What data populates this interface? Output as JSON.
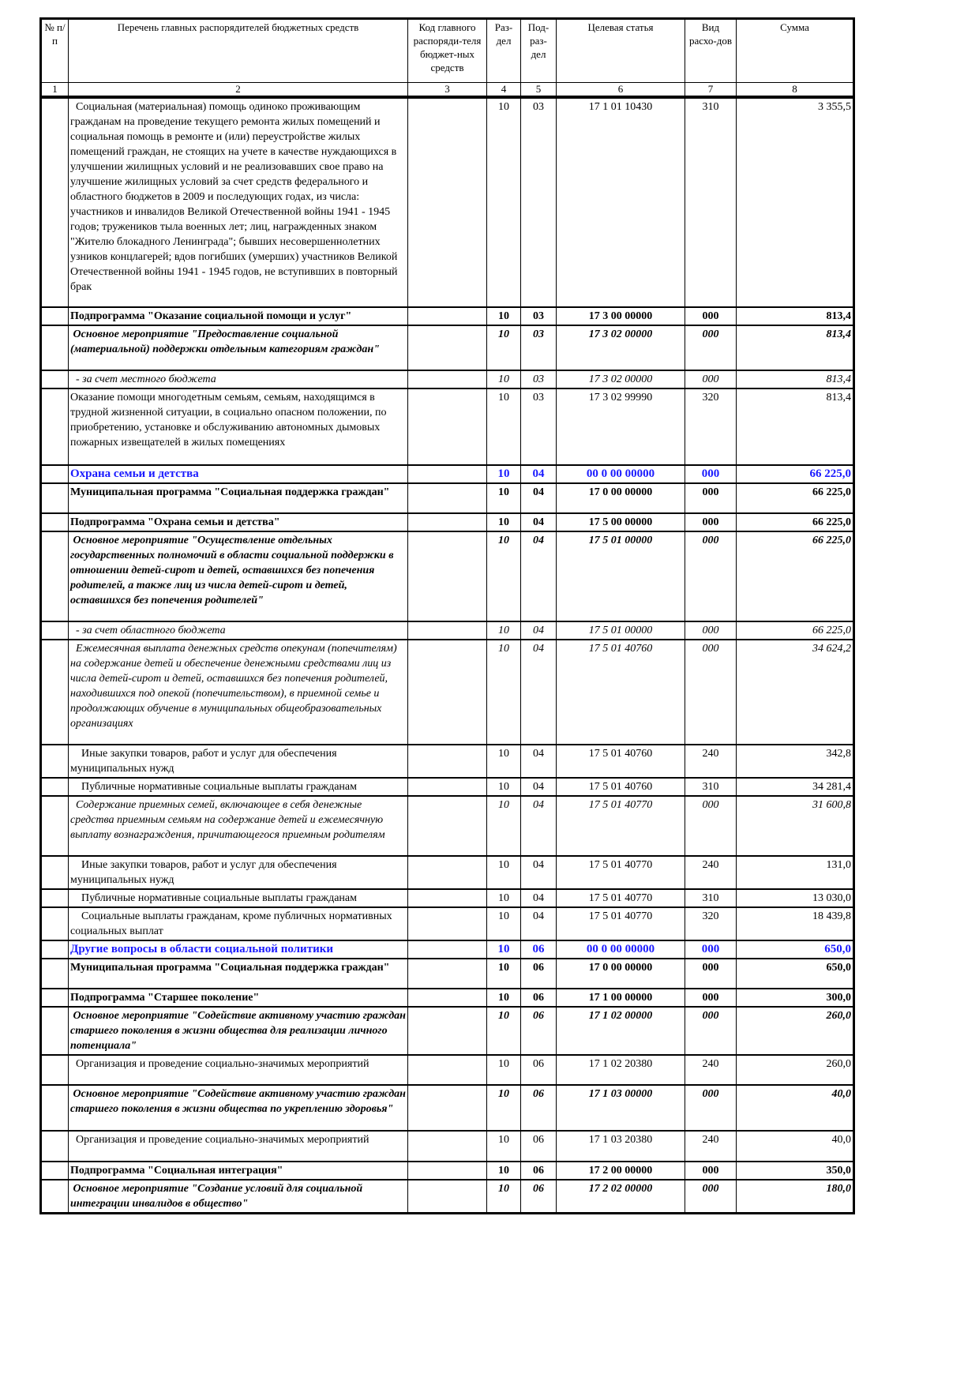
{
  "header": {
    "columns": [
      "№ п/п",
      "Перечень главных распорядителей бюджетных средств",
      "Код главного распоряди-теля бюджет-ных средств",
      "Раз-дел",
      "Под-раз-дел",
      "Целевая статья",
      "Вид расхо-дов",
      "Сумма"
    ],
    "numbers": [
      "1",
      "2",
      "3",
      "4",
      "5",
      "6",
      "7",
      "8"
    ]
  },
  "colors": {
    "section_blue": "#1a1aff"
  },
  "rows": [
    {
      "style": "normal",
      "name": "  Социальная (материальная) помощь одиноко проживающим гражданам на проведение текущего ремонта жилых помещений и социальная помощь в ремонте и (или) переустройстве жилых помещений граждан, не стоящих на учете в качестве нуждающихся в улучшении жилищных условий и не реализовавших свое право на улучшение жилищных условий за счет средств федерального и областного бюджетов в 2009 и последующих годах, из числа: участников и инвалидов Великой Отечественной войны 1941 - 1945 годов; тружеников тыла военных лет; лиц, награжденных знаком \"Жителю блокадного Ленинграда\"; бывших несовершеннолетних узников концлагерей; вдов погибших (умерших) участников Великой Отечественной войны 1941 - 1945 годов, не вступивших в повторный брак",
      "razdel": "10",
      "podrazdel": "03",
      "article": "17 1 01 10430",
      "vid": "310",
      "sum": "3 355,5"
    },
    {
      "style": "bold",
      "name": "Подпрограмма \"Оказание социальной помощи и услуг\"",
      "razdel": "10",
      "podrazdel": "03",
      "article": "17 3 00 00000",
      "vid": "000",
      "sum": "813,4"
    },
    {
      "style": "bold-italic",
      "name": " Основное мероприятие \"Предоставление социальной (материальной) поддержки отдельным категориям граждан\"",
      "razdel": "10",
      "podrazdel": "03",
      "article": "17 3 02 00000",
      "vid": "000",
      "sum": "813,4"
    },
    {
      "style": "italic",
      "name": "  - за счет местного бюджета",
      "razdel": "10",
      "podrazdel": "03",
      "article": "17 3 02 00000",
      "vid": "000",
      "sum": "813,4"
    },
    {
      "style": "normal",
      "name": "Оказание помощи многодетным семьям, семьям, находящимся в трудной жизненной ситуации, в социально опасном положении, по приобретению, установке и обслуживанию автономных дымовых пожарных извещателей в жилых помещениях",
      "razdel": "10",
      "podrazdel": "03",
      "article": "17 3 02 99990",
      "vid": "320",
      "sum": "813,4"
    },
    {
      "style": "blue",
      "name": "Охрана семьи и детства",
      "razdel": "10",
      "podrazdel": "04",
      "article": "00 0 00 00000",
      "vid": "000",
      "sum": "66 225,0"
    },
    {
      "style": "bold",
      "name": "Муниципальная программа \"Социальная поддержка граждан\"",
      "razdel": "10",
      "podrazdel": "04",
      "article": "17 0 00 00000",
      "vid": "000",
      "sum": "66 225,0"
    },
    {
      "style": "bold",
      "name": "Подпрограмма \"Охрана семьи и детства\"",
      "razdel": "10",
      "podrazdel": "04",
      "article": "17 5 00 00000",
      "vid": "000",
      "sum": "66 225,0"
    },
    {
      "style": "bold-italic",
      "name": " Основное мероприятие \"Осуществление отдельных государственных полномочий в области социальной поддержки в отношении детей-сирот и детей, оставшихся без попечения родителей, а также лиц из числа детей-сирот и детей, оставшихся без попечения родителей\"",
      "razdel": "10",
      "podrazdel": "04",
      "article": "17 5 01 00000",
      "vid": "000",
      "sum": "66 225,0"
    },
    {
      "style": "italic",
      "name": "  - за счет областного бюджета",
      "razdel": "10",
      "podrazdel": "04",
      "article": "17 5 01 00000",
      "vid": "000",
      "sum": "66 225,0"
    },
    {
      "style": "italic",
      "name": "  Ежемесячная выплата денежных средств опекунам (попечителям) на содержание детей и обеспечение денежными средствами лиц из числа детей-сирот и детей, оставшихся без попечения родителей, находившихся под опекой (попечительством), в приемной семье и продолжающих обучение в муниципальных общеобразовательных организациях",
      "razdel": "10",
      "podrazdel": "04",
      "article": "17 5 01 40760",
      "vid": "000",
      "sum": "34 624,2"
    },
    {
      "style": "normal",
      "name": "    Иные закупки товаров, работ и услуг для обеспечения муниципальных нужд",
      "razdel": "10",
      "podrazdel": "04",
      "article": "17 5 01 40760",
      "vid": "240",
      "sum": "342,8"
    },
    {
      "style": "normal",
      "name": "    Публичные нормативные социальные выплаты гражданам",
      "razdel": "10",
      "podrazdel": "04",
      "article": "17 5 01 40760",
      "vid": "310",
      "sum": "34 281,4"
    },
    {
      "style": "italic",
      "name": "  Содержание приемных семей, включающее в себя денежные средства приемным семьям на содержание детей и ежемесячную выплату вознаграждения, причитающегося приемным родителям",
      "razdel": "10",
      "podrazdel": "04",
      "article": "17 5 01 40770",
      "vid": "000",
      "sum": "31 600,8"
    },
    {
      "style": "normal",
      "name": "    Иные закупки товаров, работ и услуг для обеспечения муниципальных нужд",
      "razdel": "10",
      "podrazdel": "04",
      "article": "17 5 01 40770",
      "vid": "240",
      "sum": "131,0"
    },
    {
      "style": "normal",
      "name": "    Публичные нормативные социальные выплаты гражданам",
      "razdel": "10",
      "podrazdel": "04",
      "article": "17 5 01 40770",
      "vid": "310",
      "sum": "13 030,0"
    },
    {
      "style": "normal",
      "name": "    Социальные выплаты гражданам, кроме публичных нормативных социальных выплат",
      "razdel": "10",
      "podrazdel": "04",
      "article": "17 5 01 40770",
      "vid": "320",
      "sum": "18 439,8"
    },
    {
      "style": "blue",
      "name": "Другие вопросы в области социальной политики",
      "razdel": "10",
      "podrazdel": "06",
      "article": "00 0 00 00000",
      "vid": "000",
      "sum": "650,0"
    },
    {
      "style": "bold",
      "name": "Муниципальная программа \"Социальная поддержка граждан\"",
      "razdel": "10",
      "podrazdel": "06",
      "article": "17 0 00 00000",
      "vid": "000",
      "sum": "650,0"
    },
    {
      "style": "bold",
      "name": "Подпрограмма \"Старшее поколение\"",
      "razdel": "10",
      "podrazdel": "06",
      "article": "17 1 00 00000",
      "vid": "000",
      "sum": "300,0"
    },
    {
      "style": "bold-italic",
      "name": " Основное мероприятие \"Содействие активному участию граждан старшего поколения в жизни общества для реализации личного потенциала\"",
      "razdel": "10",
      "podrazdel": "06",
      "article": "17 1 02 00000",
      "vid": "000",
      "sum": "260,0"
    },
    {
      "style": "normal",
      "name": "  Организация и проведение социально-значимых мероприятий",
      "razdel": "10",
      "podrazdel": "06",
      "article": "17 1 02 20380",
      "vid": "240",
      "sum": "260,0"
    },
    {
      "style": "bold-italic",
      "name": " Основное мероприятие \"Содействие активному участию граждан старшего поколения в жизни общества по укреплению здоровья\"",
      "razdel": "10",
      "podrazdel": "06",
      "article": "17 1 03 00000",
      "vid": "000",
      "sum": "40,0"
    },
    {
      "style": "normal",
      "name": "  Организация и проведение социально-значимых мероприятий",
      "razdel": "10",
      "podrazdel": "06",
      "article": "17 1 03 20380",
      "vid": "240",
      "sum": "40,0"
    },
    {
      "style": "bold",
      "name": "Подпрограмма \"Социальная интеграция\"",
      "razdel": "10",
      "podrazdel": "06",
      "article": "17 2 00 00000",
      "vid": "000",
      "sum": "350,0"
    },
    {
      "style": "bold-italic",
      "name": " Основное мероприятие \"Создание условий для социальной интеграции инвалидов в общество\"",
      "razdel": "10",
      "podrazdel": "06",
      "article": "17 2 02 00000",
      "vid": "000",
      "sum": "180,0"
    }
  ]
}
